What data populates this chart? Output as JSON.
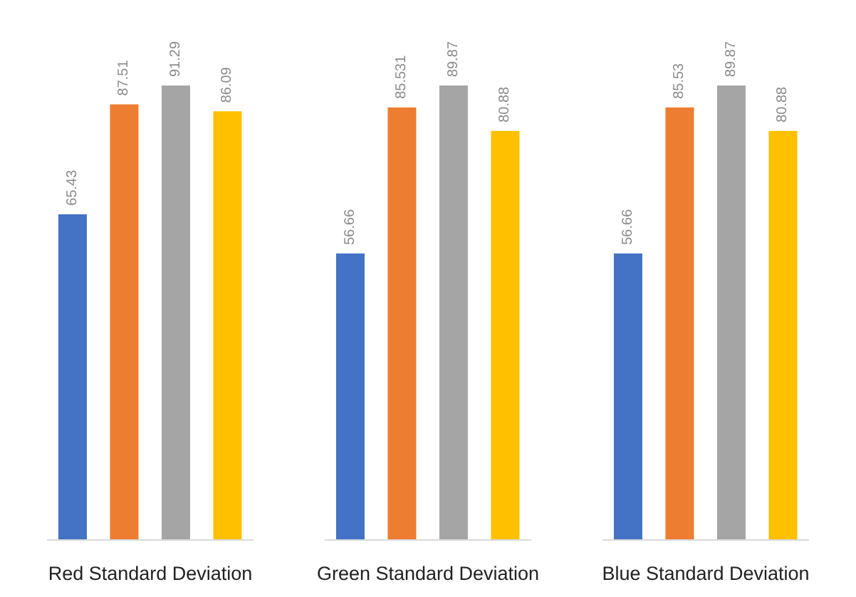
{
  "chart_data": [
    {
      "type": "bar",
      "xlabel": "Red Standard Deviation",
      "categories": [
        null,
        null,
        null,
        null
      ],
      "values": [
        65.43,
        87.51,
        91.29,
        86.09
      ],
      "colors": [
        "#4472c4",
        "#ed7d31",
        "#a5a5a5",
        "#ffc000"
      ],
      "data_labels": true
    },
    {
      "type": "bar",
      "xlabel": "Green Standard Deviation",
      "categories": [
        null,
        null,
        null,
        null
      ],
      "values": [
        56.66,
        85.531,
        89.87,
        80.88
      ],
      "colors": [
        "#4472c4",
        "#ed7d31",
        "#a5a5a5",
        "#ffc000"
      ],
      "data_labels": true
    },
    {
      "type": "bar",
      "xlabel": "Blue Standard Deviation",
      "categories": [
        null,
        null,
        null,
        null
      ],
      "values": [
        56.66,
        85.53,
        89.87,
        80.88
      ],
      "colors": [
        "#4472c4",
        "#ed7d31",
        "#a5a5a5",
        "#ffc000"
      ],
      "data_labels": true
    }
  ]
}
